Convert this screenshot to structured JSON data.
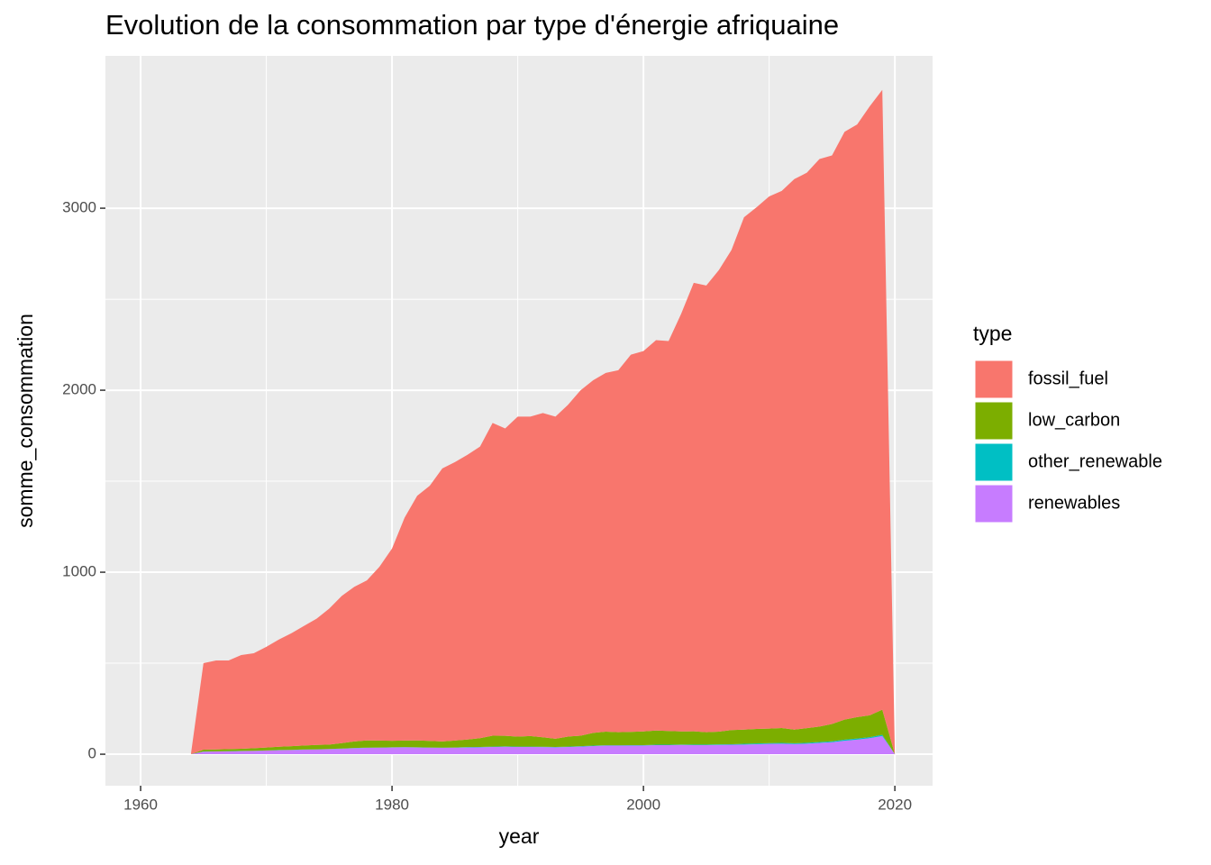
{
  "chart_data": {
    "type": "area",
    "stacked": true,
    "title": "Evolution de la consommation par type d'énergie afriquaine",
    "x_label": "year",
    "y_label": "somme_consommation",
    "legend_title": "type",
    "legend_position": "right",
    "grid": true,
    "x": [
      1964,
      1965,
      1966,
      1967,
      1968,
      1969,
      1970,
      1971,
      1972,
      1973,
      1974,
      1975,
      1976,
      1977,
      1978,
      1979,
      1980,
      1981,
      1982,
      1983,
      1984,
      1985,
      1986,
      1987,
      1988,
      1989,
      1990,
      1991,
      1992,
      1993,
      1994,
      1995,
      1996,
      1997,
      1998,
      1999,
      2000,
      2001,
      2002,
      2003,
      2004,
      2005,
      2006,
      2007,
      2008,
      2009,
      2010,
      2011,
      2012,
      2013,
      2014,
      2015,
      2016,
      2017,
      2018,
      2019,
      2020
    ],
    "series": [
      {
        "name": "fossil_fuel",
        "color": "#F8766D",
        "values": [
          0,
          475,
          489,
          487,
          515,
          522,
          553,
          589,
          621,
          657,
          694,
          747,
          809,
          850,
          879,
          955,
          1056,
          1225,
          1344,
          1402,
          1500,
          1530,
          1564,
          1602,
          1718,
          1689,
          1758,
          1755,
          1782,
          1770,
          1823,
          1898,
          1938,
          1971,
          1989,
          2072,
          2090,
          2145,
          2142,
          2295,
          2464,
          2454,
          2536,
          2637,
          2815,
          2866,
          2924,
          2951,
          3025,
          3052,
          3118,
          3124,
          3230,
          3256,
          3346,
          3405,
          0
        ]
      },
      {
        "name": "low_carbon",
        "color": "#7CAE00",
        "values": [
          0,
          10,
          10,
          11,
          12,
          14,
          16,
          18,
          20,
          22,
          24,
          24,
          30,
          36,
          40,
          38,
          36,
          36,
          38,
          36,
          34,
          38,
          42,
          48,
          60,
          58,
          55,
          58,
          52,
          45,
          55,
          58,
          70,
          75,
          72,
          73,
          75,
          78,
          76,
          72,
          73,
          68,
          70,
          78,
          78,
          80,
          80,
          82,
          75,
          80,
          85,
          95,
          110,
          118,
          120,
          138,
          0
        ]
      },
      {
        "name": "other_renewable",
        "color": "#00BFC4",
        "values": [
          0,
          1,
          1,
          1,
          1,
          1,
          1,
          1,
          1,
          1,
          1,
          1,
          1,
          1,
          1,
          1,
          1,
          1,
          1,
          1,
          1,
          1,
          2,
          2,
          2,
          2,
          2,
          2,
          2,
          2,
          2,
          2,
          2,
          2,
          2,
          2,
          2,
          2,
          2,
          2,
          3,
          3,
          3,
          3,
          4,
          4,
          4,
          4,
          4,
          5,
          5,
          5,
          6,
          6,
          6,
          7,
          0
        ]
      },
      {
        "name": "renewables",
        "color": "#C77CFF",
        "values": [
          0,
          14,
          15,
          16,
          17,
          18,
          20,
          22,
          23,
          25,
          26,
          28,
          30,
          33,
          35,
          36,
          37,
          38,
          37,
          36,
          35,
          36,
          37,
          38,
          40,
          41,
          40,
          40,
          39,
          38,
          40,
          42,
          45,
          47,
          47,
          48,
          48,
          50,
          50,
          51,
          50,
          50,
          51,
          52,
          53,
          55,
          57,
          58,
          56,
          58,
          62,
          66,
          74,
          80,
          88,
          100,
          0
        ]
      }
    ],
    "xlim": [
      1957.2,
      2023.0
    ],
    "xticks": [
      1960,
      1980,
      2000,
      2020
    ],
    "ylim": [
      -173,
      3837
    ],
    "yticks": [
      0,
      1000,
      2000,
      3000
    ]
  }
}
